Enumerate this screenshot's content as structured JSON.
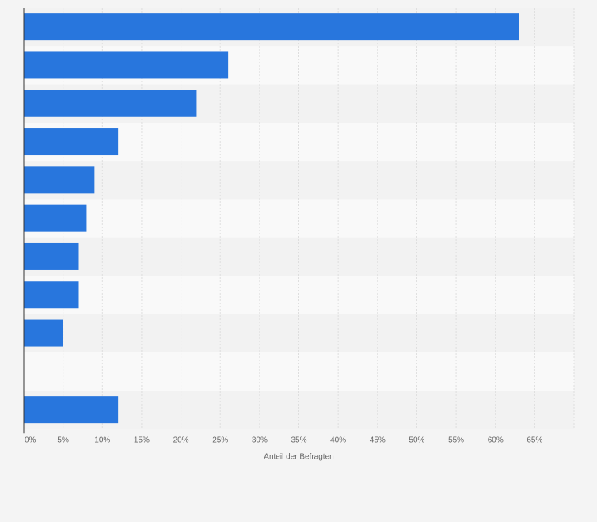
{
  "chart_data": {
    "type": "bar",
    "orientation": "horizontal",
    "categories": [
      "",
      "",
      "",
      "",
      "",
      "",
      "",
      "",
      "",
      "",
      ""
    ],
    "values": [
      63,
      26,
      22,
      12,
      9,
      8,
      7,
      7,
      5,
      0,
      12
    ],
    "title": "",
    "xlabel": "Anteil der Befragten",
    "ylabel": "",
    "xlim": [
      0,
      70
    ],
    "x_ticks": [
      0,
      5,
      10,
      15,
      20,
      25,
      30,
      35,
      40,
      45,
      50,
      55,
      60,
      65
    ],
    "x_tick_labels": [
      "0%",
      "5%",
      "10%",
      "15%",
      "20%",
      "25%",
      "30%",
      "35%",
      "40%",
      "45%",
      "50%",
      "55%",
      "60%",
      "65%"
    ],
    "grid": true,
    "legend": "none",
    "colors": {
      "bar": "#2876dd",
      "band_odd": "#f2f2f2",
      "band_even": "#f9f9f9",
      "grid": "#dedede",
      "axis": "#333333",
      "background": "#f4f4f4"
    }
  }
}
